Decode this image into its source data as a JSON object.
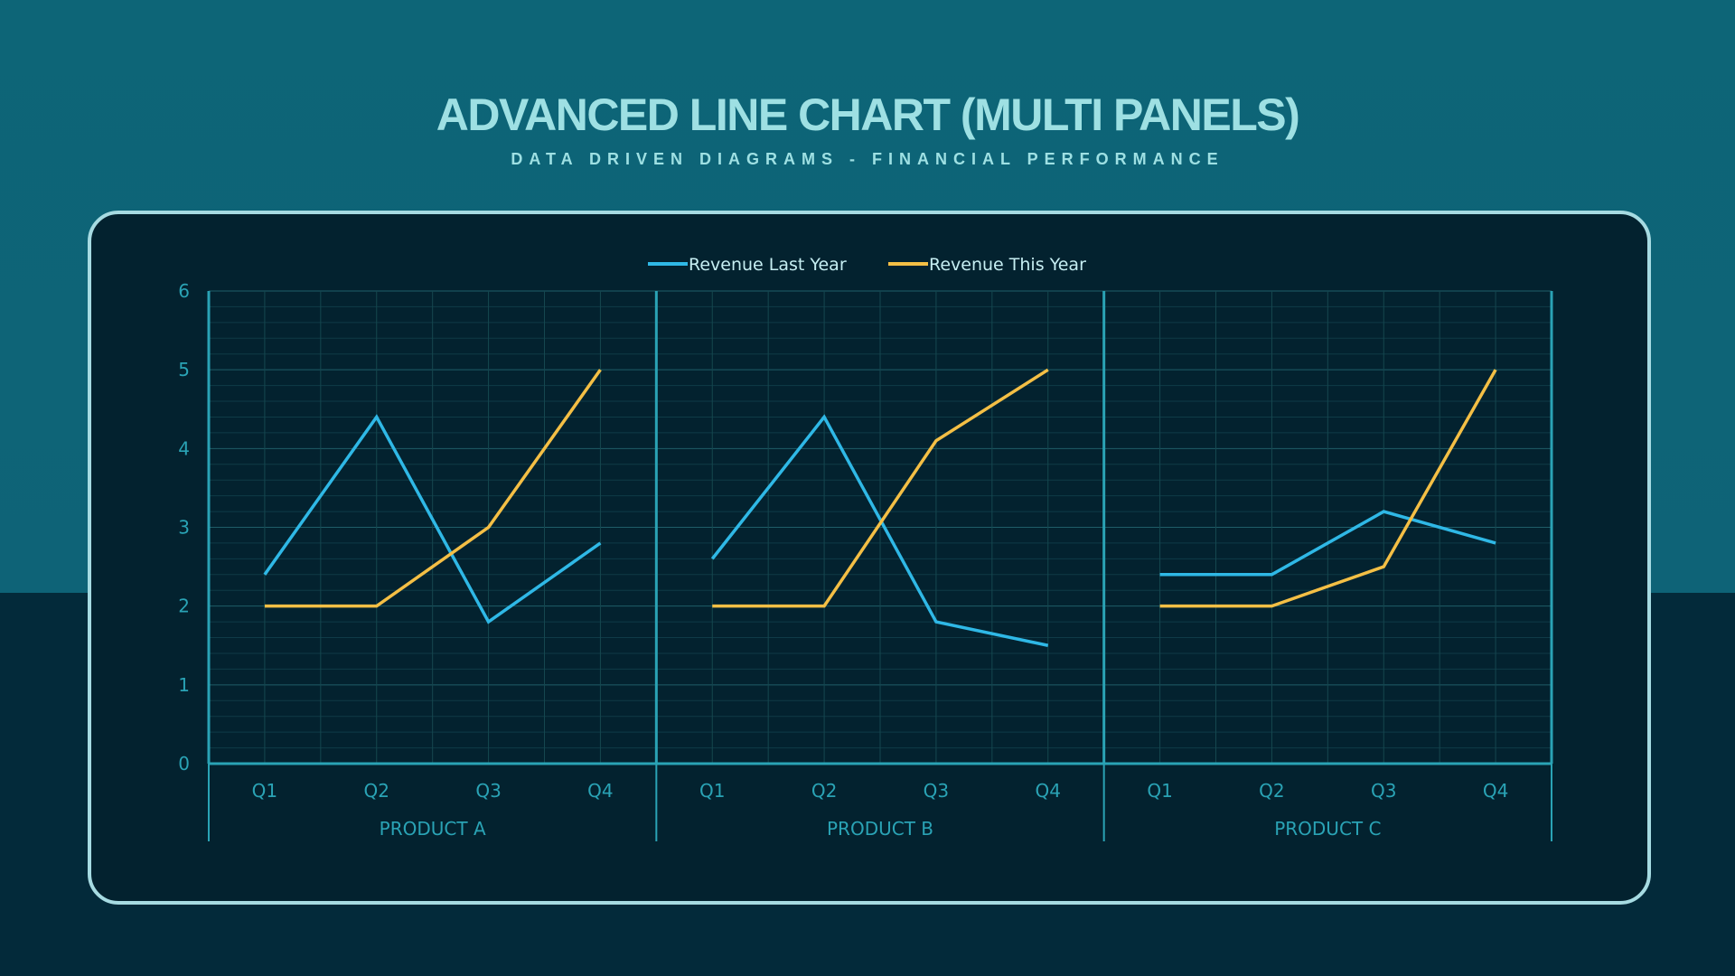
{
  "header": {
    "title": "ADVANCED LINE CHART (MULTI PANELS)",
    "subtitle": "DATA DRIVEN DIAGRAMS - FINANCIAL PERFORMANCE"
  },
  "colors": {
    "last_year": "#2fb8e6",
    "this_year": "#f4bf45",
    "axis": "#2aa3b5",
    "grid": "#1d5a66"
  },
  "chart_data": {
    "type": "line",
    "title": "ADVANCED LINE CHART (MULTI PANELS)",
    "legend_position": "top-center",
    "grid": true,
    "ylim": [
      0,
      6
    ],
    "yticks": [
      "0",
      "1",
      "2",
      "3",
      "4",
      "5",
      "6"
    ],
    "categories": [
      "Q1",
      "Q2",
      "Q3",
      "Q4"
    ],
    "legend": [
      "Revenue Last Year",
      "Revenue This Year"
    ],
    "panels": [
      {
        "label": "PRODUCT A",
        "series": [
          {
            "name": "Revenue Last Year",
            "values": [
              2.4,
              4.4,
              1.8,
              2.8
            ]
          },
          {
            "name": "Revenue This Year",
            "values": [
              2.0,
              2.0,
              3.0,
              5.0
            ]
          }
        ]
      },
      {
        "label": "PRODUCT B",
        "series": [
          {
            "name": "Revenue Last Year",
            "values": [
              2.6,
              4.4,
              1.8,
              1.5
            ]
          },
          {
            "name": "Revenue This Year",
            "values": [
              2.0,
              2.0,
              4.1,
              5.0
            ]
          }
        ]
      },
      {
        "label": "PRODUCT C",
        "series": [
          {
            "name": "Revenue Last Year",
            "values": [
              2.4,
              2.4,
              3.2,
              2.8
            ]
          },
          {
            "name": "Revenue This Year",
            "values": [
              2.0,
              2.0,
              2.5,
              5.0
            ]
          }
        ]
      }
    ]
  }
}
